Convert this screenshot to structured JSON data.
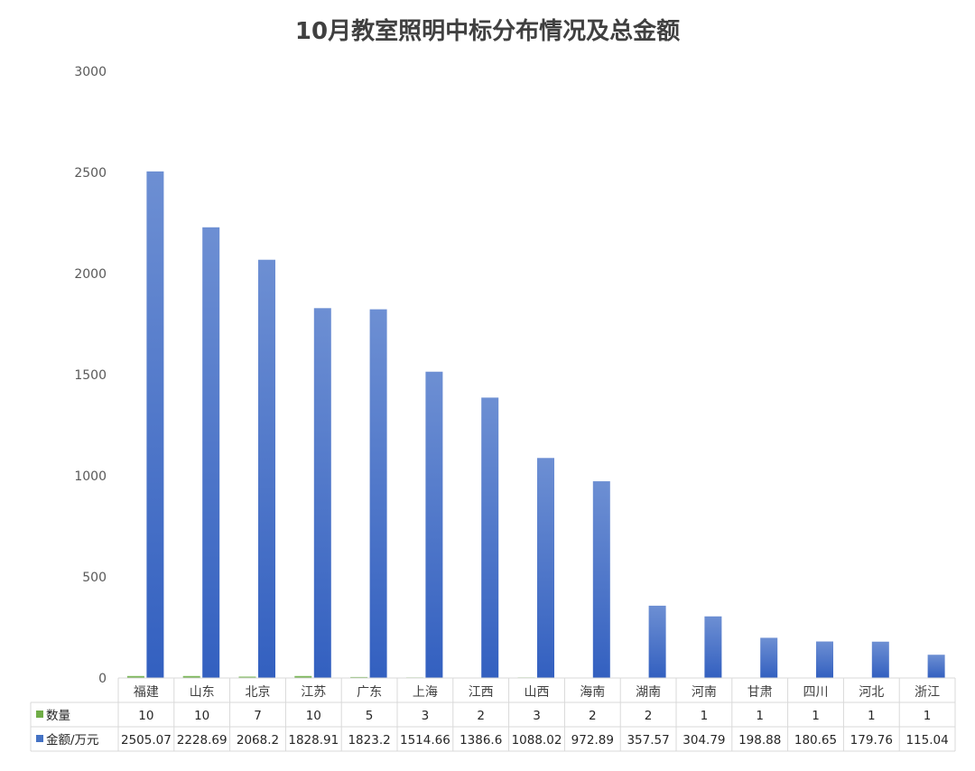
{
  "chart_data": {
    "type": "bar",
    "title": "10月教室照明中标分布情况及总金额",
    "categories": [
      "福建",
      "山东",
      "北京",
      "江苏",
      "广东",
      "上海",
      "江西",
      "山西",
      "海南",
      "湖南",
      "河南",
      "甘肃",
      "四川",
      "河北",
      "浙江"
    ],
    "series": [
      {
        "name": "数量",
        "color": "#70ad47",
        "values": [
          10,
          10,
          7,
          10,
          5,
          3,
          2,
          3,
          2,
          2,
          1,
          1,
          1,
          1,
          1
        ]
      },
      {
        "name": "金额/万元",
        "color": "#4472c4",
        "values": [
          2505.07,
          2228.69,
          2068.2,
          1828.91,
          1823.2,
          1514.66,
          1386.6,
          1088.02,
          972.89,
          357.57,
          304.79,
          198.88,
          180.65,
          179.76,
          115.04
        ]
      }
    ],
    "ylim": [
      0,
      3000
    ],
    "yticks": [
      0,
      500,
      1000,
      1500,
      2000,
      2500,
      3000
    ],
    "grid": false,
    "legend": "data table"
  }
}
